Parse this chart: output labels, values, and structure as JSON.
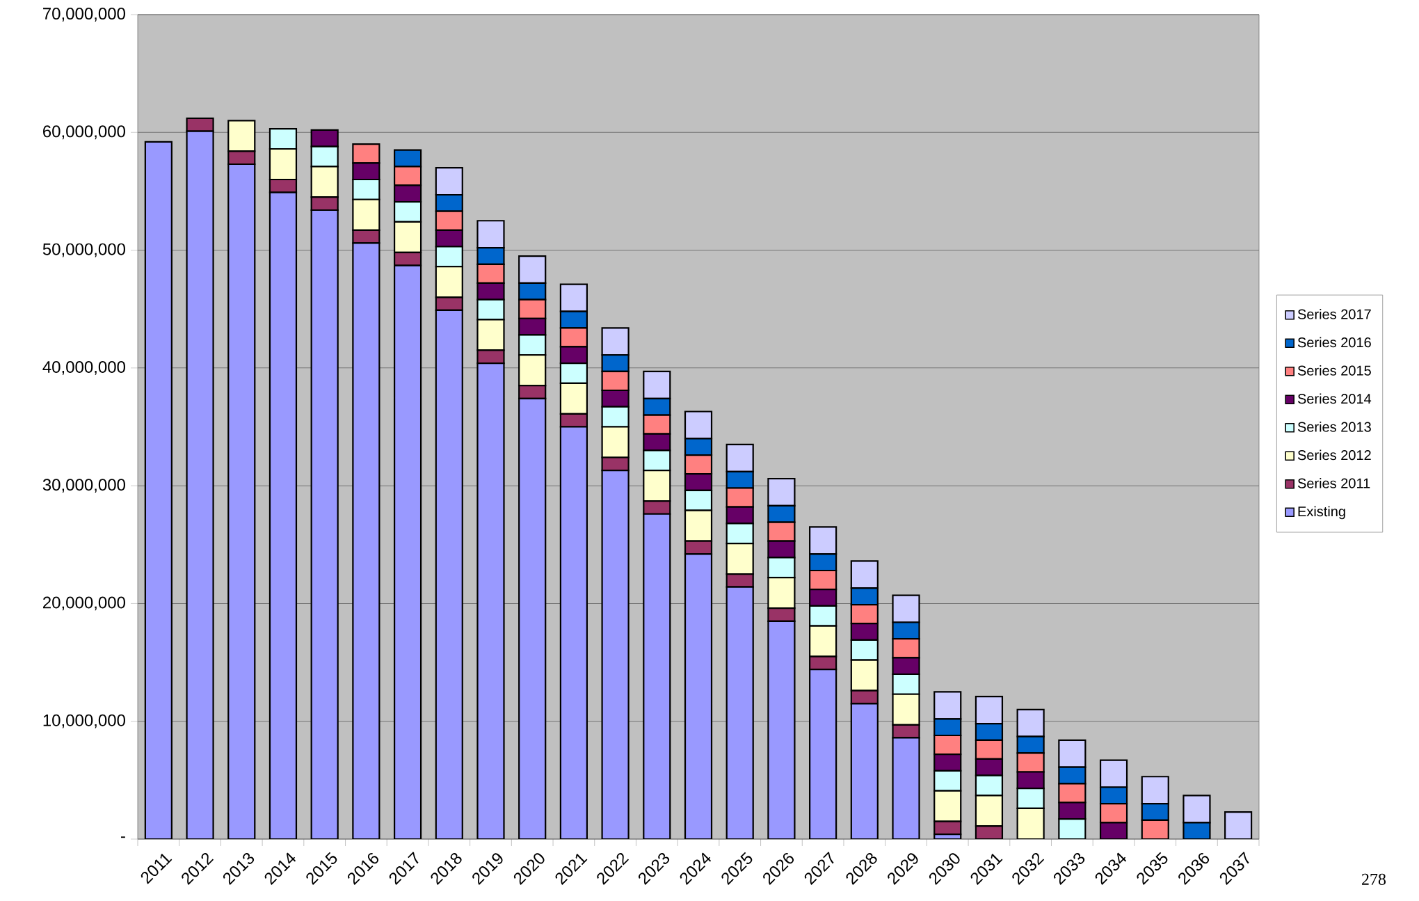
{
  "chart_data": {
    "type": "bar",
    "stacked": true,
    "categories": [
      "2011",
      "2012",
      "2013",
      "2014",
      "2015",
      "2016",
      "2017",
      "2018",
      "2019",
      "2020",
      "2021",
      "2022",
      "2023",
      "2024",
      "2025",
      "2026",
      "2027",
      "2028",
      "2029",
      "2030",
      "2031",
      "2032",
      "2033",
      "2034",
      "2035",
      "2036",
      "2037"
    ],
    "series": [
      {
        "name": "Existing",
        "color": "#9999ff",
        "values": [
          59200000,
          60100000,
          57300000,
          54900000,
          53400000,
          50600000,
          48700000,
          44900000,
          40400000,
          37400000,
          35000000,
          31300000,
          27600000,
          24200000,
          21400000,
          18500000,
          14400000,
          11500000,
          8600000,
          400000,
          null,
          null,
          null,
          null,
          null,
          null,
          null
        ]
      },
      {
        "name": "Series 2011",
        "color": "#993366",
        "values": [
          null,
          1100000,
          1100000,
          1100000,
          1100000,
          1100000,
          1100000,
          1100000,
          1100000,
          1100000,
          1100000,
          1100000,
          1100000,
          1100000,
          1100000,
          1100000,
          1100000,
          1100000,
          1100000,
          1100000,
          1100000,
          null,
          null,
          null,
          null,
          null,
          null
        ]
      },
      {
        "name": "Series 2012",
        "color": "#ffffcc",
        "values": [
          null,
          null,
          2600000,
          2600000,
          2600000,
          2600000,
          2600000,
          2600000,
          2600000,
          2600000,
          2600000,
          2600000,
          2600000,
          2600000,
          2600000,
          2600000,
          2600000,
          2600000,
          2600000,
          2600000,
          2600000,
          2600000,
          null,
          null,
          null,
          null,
          null
        ]
      },
      {
        "name": "Series 2013",
        "color": "#ccffff",
        "values": [
          null,
          null,
          null,
          1700000,
          1700000,
          1700000,
          1700000,
          1700000,
          1700000,
          1700000,
          1700000,
          1700000,
          1700000,
          1700000,
          1700000,
          1700000,
          1700000,
          1700000,
          1700000,
          1700000,
          1700000,
          1700000,
          1700000,
          null,
          null,
          null,
          null
        ]
      },
      {
        "name": "Series 2014",
        "color": "#660066",
        "values": [
          null,
          null,
          null,
          null,
          1400000,
          1400000,
          1400000,
          1400000,
          1400000,
          1400000,
          1400000,
          1400000,
          1400000,
          1400000,
          1400000,
          1400000,
          1400000,
          1400000,
          1400000,
          1400000,
          1400000,
          1400000,
          1400000,
          1400000,
          null,
          null,
          null
        ]
      },
      {
        "name": "Series 2015",
        "color": "#ff8080",
        "values": [
          null,
          null,
          null,
          null,
          null,
          1600000,
          1600000,
          1600000,
          1600000,
          1600000,
          1600000,
          1600000,
          1600000,
          1600000,
          1600000,
          1600000,
          1600000,
          1600000,
          1600000,
          1600000,
          1600000,
          1600000,
          1600000,
          1600000,
          1600000,
          null,
          null
        ]
      },
      {
        "name": "Series 2016",
        "color": "#0066cc",
        "values": [
          null,
          null,
          null,
          null,
          null,
          null,
          1400000,
          1400000,
          1400000,
          1400000,
          1400000,
          1400000,
          1400000,
          1400000,
          1400000,
          1400000,
          1400000,
          1400000,
          1400000,
          1400000,
          1400000,
          1400000,
          1400000,
          1400000,
          1400000,
          1400000,
          null
        ]
      },
      {
        "name": "Series 2017",
        "color": "#ccccff",
        "values": [
          null,
          null,
          null,
          null,
          null,
          null,
          null,
          2300000,
          2300000,
          2300000,
          2300000,
          2300000,
          2300000,
          2300000,
          2300000,
          2300000,
          2300000,
          2300000,
          2300000,
          2300000,
          2300000,
          2300000,
          2300000,
          2300000,
          2300000,
          2300000,
          2300000
        ]
      }
    ],
    "ylim": [
      0,
      70000000
    ],
    "yticks": [
      {
        "value": 0,
        "label": "-"
      },
      {
        "value": 10000000,
        "label": "10,000,000"
      },
      {
        "value": 20000000,
        "label": "20,000,000"
      },
      {
        "value": 30000000,
        "label": "30,000,000"
      },
      {
        "value": 40000000,
        "label": "40,000,000"
      },
      {
        "value": 50000000,
        "label": "50,000,000"
      },
      {
        "value": 60000000,
        "label": "60,000,000"
      },
      {
        "value": 70000000,
        "label": "70,000,000"
      }
    ],
    "grid": "y",
    "legend": "right",
    "annotations": [
      "278"
    ]
  }
}
